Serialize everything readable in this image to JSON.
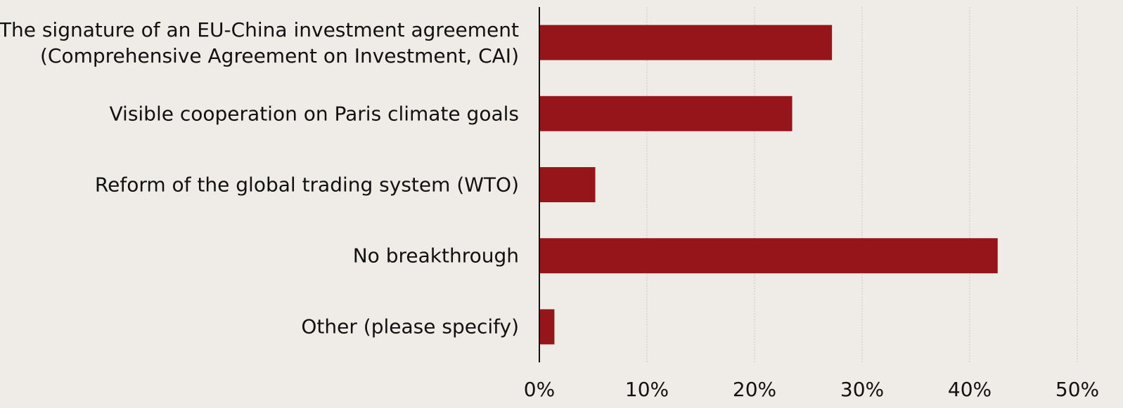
{
  "chart_data": {
    "type": "bar",
    "orientation": "horizontal",
    "categories": [
      "The signature of an EU-China investment agreement\n(Comprehensive Agreement on Investment, CAI)",
      "Visible cooperation on Paris climate goals",
      "Reform of the global trading system (WTO)",
      "No breakthrough",
      "Other (please specify)"
    ],
    "values": [
      27.2,
      23.5,
      5.2,
      42.6,
      1.4
    ],
    "color": "#96151b",
    "xlim": [
      0,
      50
    ],
    "xticks": [
      {
        "value": 0,
        "label": "0%"
      },
      {
        "value": 10,
        "label": "10%"
      },
      {
        "value": 20,
        "label": "20%"
      },
      {
        "value": 30,
        "label": "30%"
      },
      {
        "value": 40,
        "label": "40%"
      },
      {
        "value": 50,
        "label": "50%"
      }
    ],
    "grid": true
  }
}
